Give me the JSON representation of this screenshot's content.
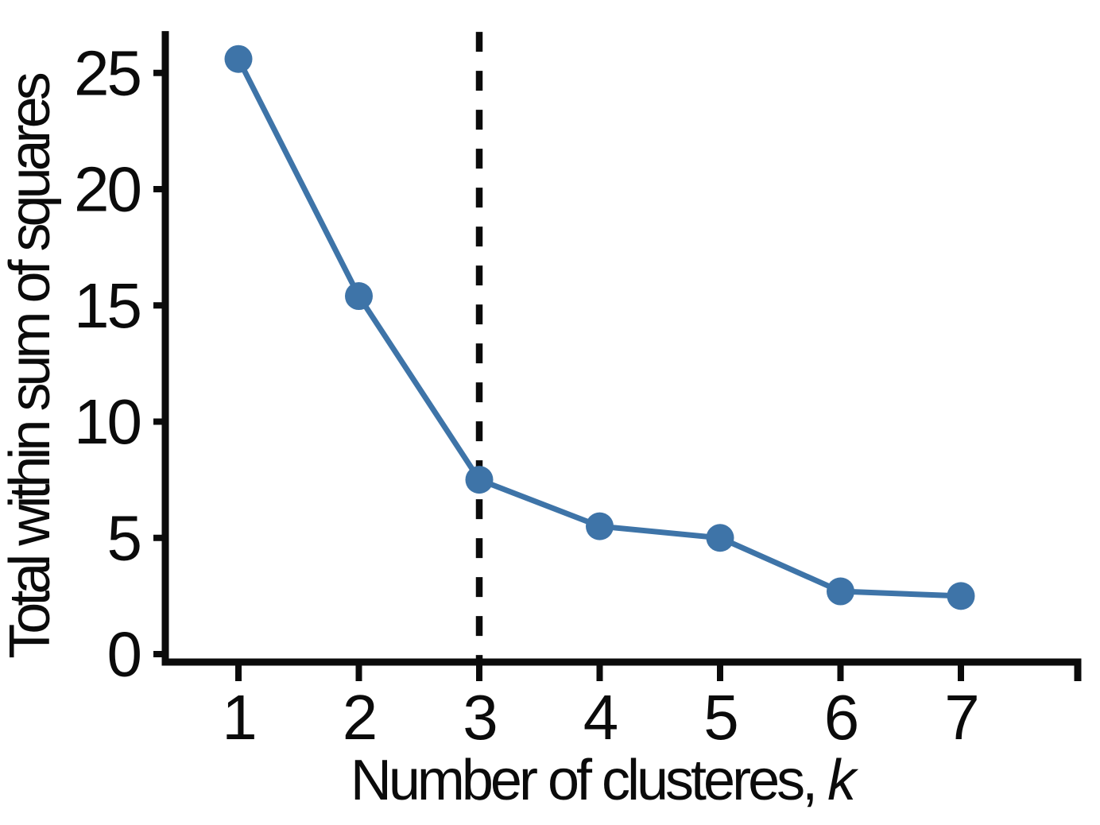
{
  "figure": {
    "background": "#ffffff"
  },
  "chart_data": {
    "type": "line",
    "title": "",
    "xlabel": "Number of clusteres, k",
    "xlabel_prefix": "Number of clusteres, ",
    "xlabel_italic_suffix": "k",
    "ylabel": "Total within sum of squares",
    "x": [
      1,
      2,
      3,
      4,
      5,
      6,
      7
    ],
    "values": [
      25.6,
      15.4,
      7.5,
      5.5,
      5.0,
      2.7,
      2.5
    ],
    "xticks": [
      "1",
      "2",
      "3",
      "4",
      "5",
      "6",
      "7"
    ],
    "xtick_values": [
      1,
      2,
      3,
      4,
      5,
      6,
      7
    ],
    "yticks": [
      "0",
      "5",
      "10",
      "15",
      "20",
      "25"
    ],
    "ytick_values": [
      0,
      5,
      10,
      15,
      20,
      25
    ],
    "xlim": [
      0.39,
      8.0
    ],
    "ylim": [
      0,
      26.8
    ],
    "grid": false,
    "legend": false,
    "marker": "circle",
    "annotations": [
      {
        "type": "vline",
        "x": 3,
        "line_style": "dashed",
        "color": "#0b0b0b"
      }
    ],
    "colors": {
      "line": "#3e74a8",
      "marker": "#3e74a8",
      "axis": "#0b0b0b",
      "tick_label": "#0b0b0b",
      "dashed_line": "#0b0b0b"
    }
  }
}
